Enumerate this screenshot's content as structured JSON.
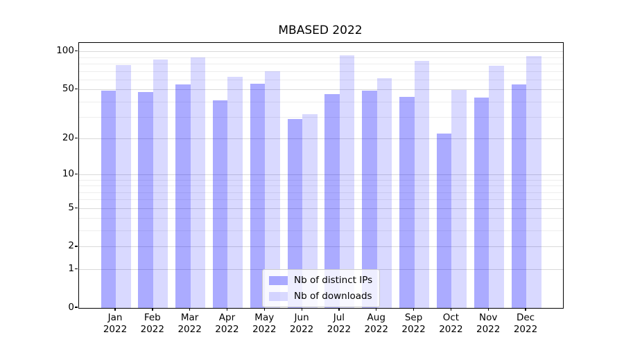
{
  "title": "MBASED 2022",
  "legend": {
    "entries": [
      {
        "key": "distinct-ips",
        "label": "Nb of distinct IPs",
        "color": "rgba(0,0,255,0.33)"
      },
      {
        "key": "downloads",
        "label": "Nb of downloads",
        "color": "rgba(0,0,255,0.15)"
      }
    ]
  },
  "colors": {
    "background": "#ffffff",
    "spine": "#000000",
    "grid_major": "#d9d9d9",
    "grid_minor": "#ededed",
    "bar_dark": "rgba(0,0,255,0.33)",
    "bar_light": "rgba(0,0,255,0.15)"
  },
  "chart_data": {
    "type": "bar",
    "title": "MBASED 2022",
    "scale": "log1p",
    "grid": true,
    "legend_position": "lower center",
    "categories": [
      "Jan",
      "Feb",
      "Mar",
      "Apr",
      "May",
      "Jun",
      "Jul",
      "Aug",
      "Sep",
      "Oct",
      "Nov",
      "Dec"
    ],
    "year_label": "2022",
    "series": [
      {
        "key": "distinct-ips",
        "name": "Nb of distinct IPs",
        "color": "rgba(0,0,255,0.33)",
        "values": [
          49,
          48,
          55,
          41,
          56,
          29,
          46,
          49,
          44,
          22,
          43,
          55
        ]
      },
      {
        "key": "downloads",
        "name": "Nb of downloads",
        "color": "rgba(0,0,255,0.15)",
        "values": [
          79,
          87,
          90,
          63,
          70,
          32,
          94,
          62,
          85,
          50,
          78,
          92
        ]
      }
    ],
    "xlabel": "",
    "ylabel": "",
    "ylim": [
      0,
      117.5
    ],
    "yticks": [
      100,
      50,
      20,
      10,
      5,
      2,
      1,
      0
    ],
    "grid_major_values": [
      1,
      2,
      5,
      10,
      20,
      50,
      100
    ],
    "grid_minor_values": [
      3,
      4,
      6,
      7,
      8,
      9,
      30,
      40,
      60,
      70,
      80,
      90
    ]
  }
}
